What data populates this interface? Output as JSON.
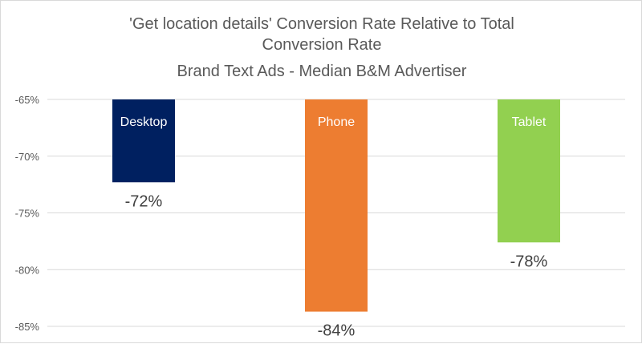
{
  "chart_data": {
    "type": "bar",
    "title_lines": [
      "'Get location details' Conversion Rate Relative to Total",
      "Conversion Rate",
      "Brand Text Ads - Median B&M Advertiser"
    ],
    "categories": [
      "Desktop",
      "Phone",
      "Tablet"
    ],
    "values": [
      -72.3,
      -83.7,
      -77.6
    ],
    "data_labels": [
      "-72%",
      "-84%",
      "-78%"
    ],
    "colors": [
      "#002060",
      "#ED7D31",
      "#92D050"
    ],
    "ylim": [
      -85,
      -65
    ],
    "y_ticks": [
      "-65%",
      "-70%",
      "-75%",
      "-80%",
      "-85%"
    ],
    "grid": true,
    "xlabel": "",
    "ylabel": ""
  }
}
